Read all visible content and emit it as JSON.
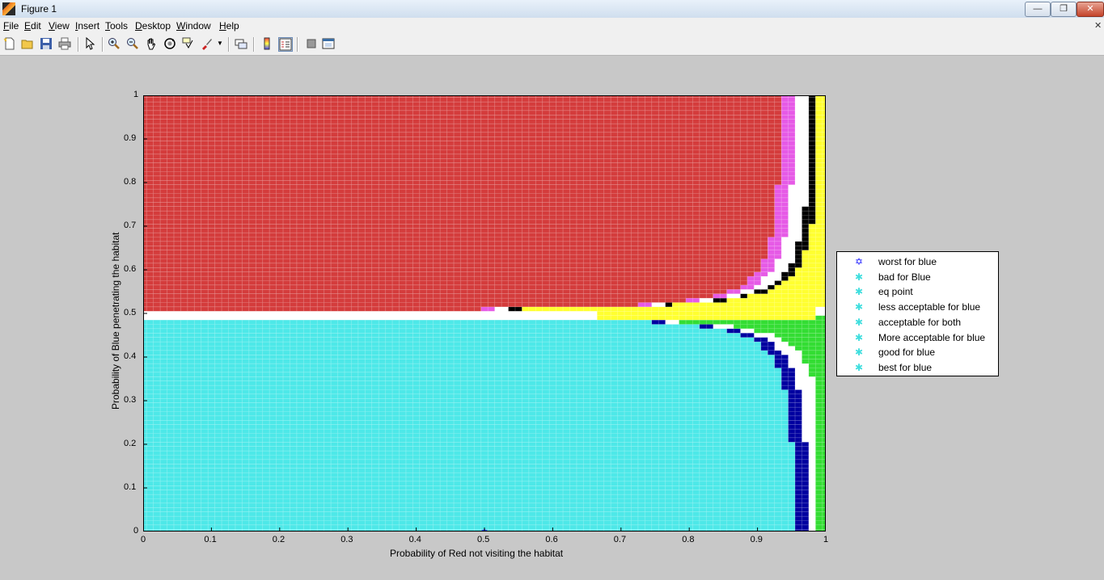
{
  "window": {
    "title": "Figure 1",
    "minimize": "—",
    "maximize": "❐",
    "close": "✕"
  },
  "menu": {
    "items": [
      "File",
      "Edit",
      "View",
      "Insert",
      "Tools",
      "Desktop",
      "Window",
      "Help"
    ],
    "close_x": "✕"
  },
  "toolbar": {
    "icons": [
      "new-figure-icon",
      "open-file-icon",
      "save-icon",
      "print-icon",
      "edit-plot-arrow-icon",
      "zoom-in-icon",
      "zoom-out-icon",
      "pan-hand-icon",
      "rotate-3d-icon",
      "data-cursor-icon",
      "brush-icon",
      "brush-dropdown-icon",
      "link-plot-icon",
      "insert-colorbar-icon",
      "insert-legend-icon",
      "hide-plot-tools-icon",
      "show-plot-tools-icon"
    ]
  },
  "colors": {
    "red": "#d43c3c",
    "magenta": "#e65ae6",
    "yellow": "#ffff30",
    "black": "#000000",
    "cyan": "#4de8e8",
    "navy": "#0000a0",
    "green": "#33dd33",
    "blue": "#1c1cff"
  },
  "chart_data": {
    "type": "scatter",
    "xlabel": "Probability of Red not visiting the habitat",
    "ylabel": "Probability of Blue penetrating the habitat",
    "xlim": [
      0,
      1
    ],
    "ylim": [
      0,
      1
    ],
    "xticks": [
      "0",
      "0.1",
      "0.2",
      "0.3",
      "0.4",
      "0.5",
      "0.6",
      "0.7",
      "0.8",
      "0.9",
      "1"
    ],
    "yticks": [
      "0",
      "0.1",
      "0.2",
      "0.3",
      "0.4",
      "0.5",
      "0.6",
      "0.7",
      "0.8",
      "0.9",
      "1"
    ],
    "grid_step": 0.01,
    "legend_position": "east-outside",
    "legend": [
      {
        "label": "worst for blue",
        "marker": "✡",
        "color": "#1c1cff"
      },
      {
        "label": "bad for Blue",
        "marker": "✱",
        "color": "#3fdede"
      },
      {
        "label": "eq point",
        "marker": "✱",
        "color": "#3fdede"
      },
      {
        "label": "less acceptable for blue",
        "marker": "✱",
        "color": "#3fdede"
      },
      {
        "label": "acceptable for both",
        "marker": "✱",
        "color": "#3fdede"
      },
      {
        "label": "More acceptable for blue",
        "marker": "✱",
        "color": "#3fdede"
      },
      {
        "label": "good for blue",
        "marker": "✱",
        "color": "#3fdede"
      },
      {
        "label": "best for blue",
        "marker": "✱",
        "color": "#3fdede"
      }
    ],
    "regions": [
      {
        "name": "red",
        "y_range": [
          0.51,
          1.0
        ],
        "boundary": "x < 0.5+0.5*(0.03 - |y-0.5|... )"
      },
      {
        "name": "cyan",
        "y_range": [
          0.0,
          0.48
        ]
      },
      {
        "name": "yellow_band",
        "y_range": [
          0.49,
          0.5
        ]
      }
    ],
    "special_points": [
      {
        "label": "worst for blue",
        "x": 0.5,
        "y": 0.0
      }
    ]
  }
}
